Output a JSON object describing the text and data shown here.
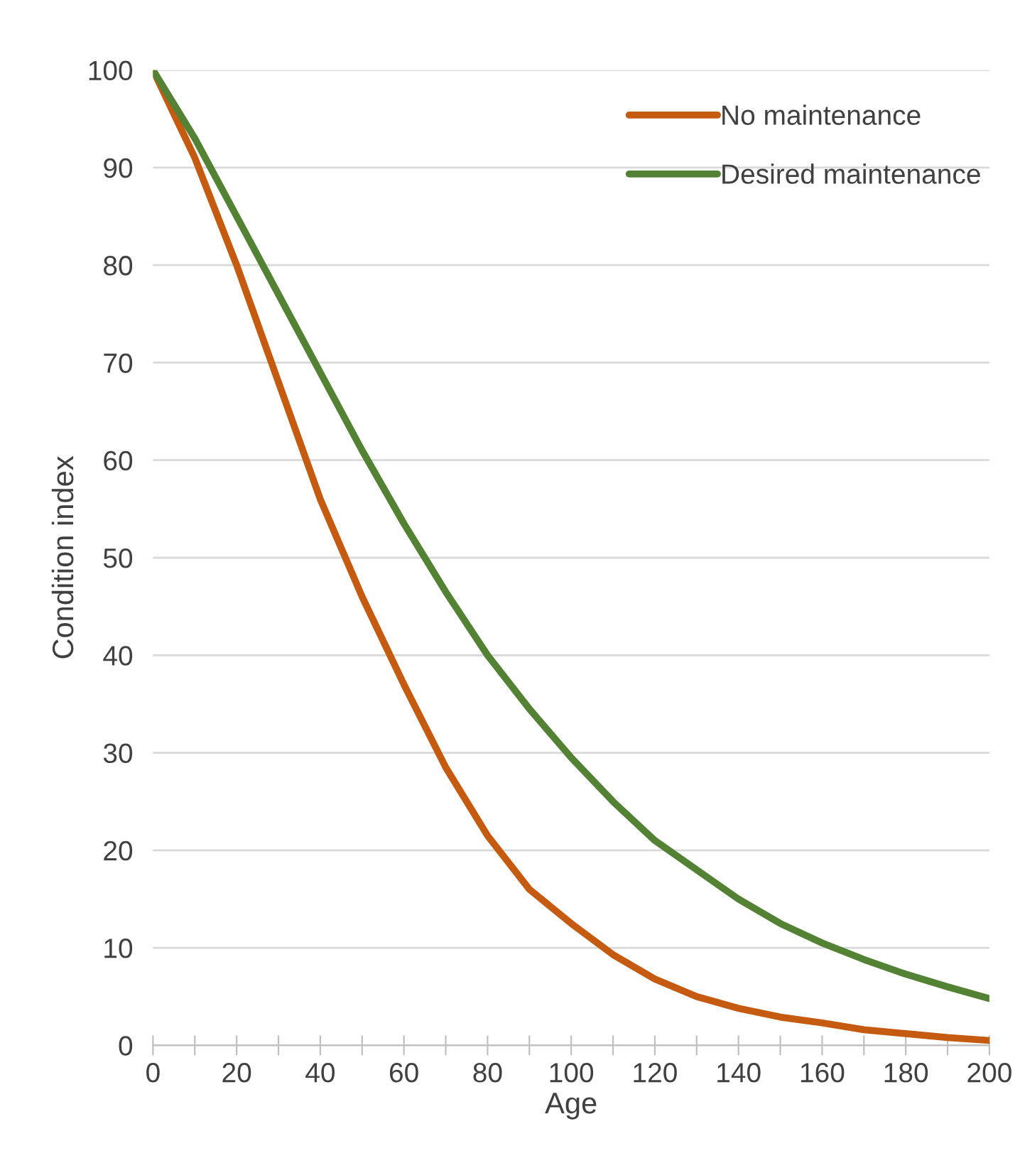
{
  "chart_data": {
    "type": "line",
    "xlabel": "Age",
    "ylabel": "Condition index",
    "x": [
      0,
      10,
      20,
      30,
      40,
      50,
      60,
      70,
      80,
      90,
      100,
      110,
      120,
      130,
      140,
      150,
      160,
      170,
      180,
      190,
      200
    ],
    "series": [
      {
        "name": "No maintenance",
        "color": "#c55a11",
        "values": [
          100,
          91,
          80,
          68,
          56,
          46,
          37,
          28.5,
          21.5,
          16,
          12.5,
          9.3,
          6.8,
          5,
          3.8,
          2.9,
          2.3,
          1.6,
          1.2,
          0.8,
          0.5
        ]
      },
      {
        "name": "Desired maintenance",
        "color": "#548235",
        "values": [
          100,
          93,
          85,
          77,
          69,
          61,
          53.5,
          46.5,
          40,
          34.5,
          29.5,
          25,
          21,
          18,
          15,
          12.5,
          10.5,
          8.8,
          7.3,
          6,
          4.8
        ]
      }
    ],
    "xlim": [
      0,
      200
    ],
    "ylim": [
      0,
      100
    ],
    "xticks": [
      0,
      {
        "value": 10,
        "label": null
      },
      20,
      {
        "value": 30,
        "label": null
      },
      40,
      {
        "value": 50,
        "label": null
      },
      60,
      {
        "value": 70,
        "label": null
      },
      80,
      {
        "value": 90,
        "label": null
      },
      100,
      {
        "value": 110,
        "label": null
      },
      120,
      {
        "value": 130,
        "label": null
      },
      140,
      {
        "value": 150,
        "label": null
      },
      160,
      {
        "value": 170,
        "label": null
      },
      180,
      {
        "value": 190,
        "label": null
      },
      200
    ],
    "yticks": [
      0,
      10,
      20,
      30,
      40,
      50,
      60,
      70,
      80,
      90,
      100
    ],
    "grid": "y",
    "legend": "top right",
    "marker": "none",
    "line_style": "solid"
  }
}
